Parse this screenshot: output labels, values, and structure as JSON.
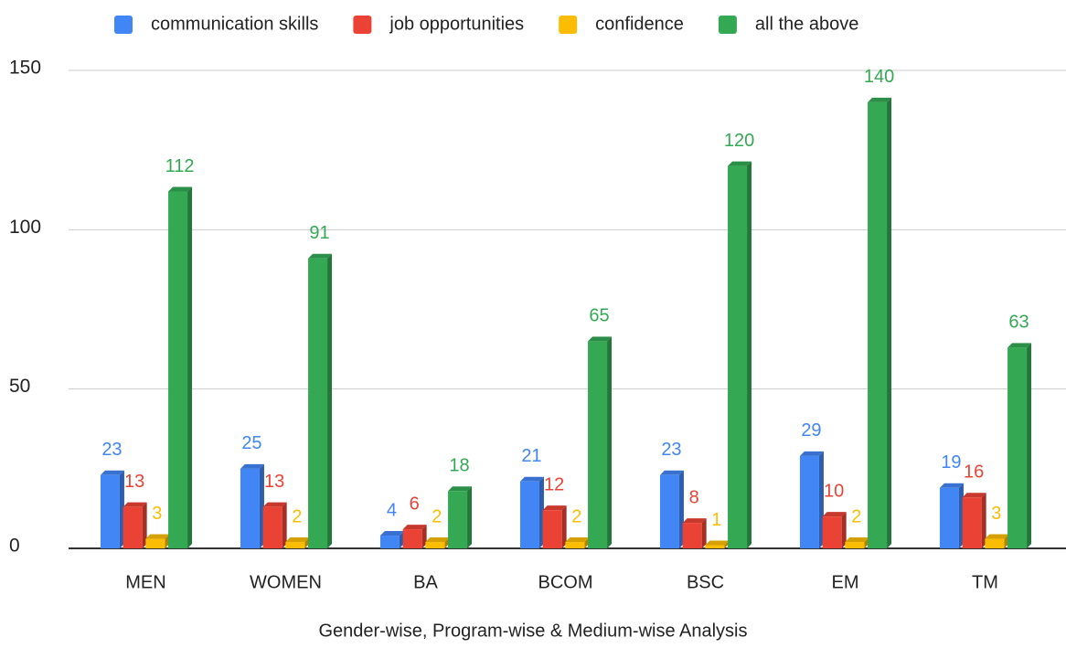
{
  "chart_data": {
    "type": "bar3d",
    "xlabel": "Gender-wise, Program-wise & Medium-wise Analysis",
    "categories": [
      "MEN",
      "WOMEN",
      "BA",
      "BCOM",
      "BSC",
      "EM",
      "TM"
    ],
    "series": [
      {
        "name": "communication skills",
        "color": "#4285f4",
        "values": [
          23,
          25,
          4,
          21,
          23,
          29,
          19
        ]
      },
      {
        "name": "job opportunities",
        "color": "#ea4335",
        "values": [
          13,
          13,
          6,
          12,
          8,
          10,
          16
        ]
      },
      {
        "name": "confidence",
        "color": "#fbbc04",
        "values": [
          3,
          2,
          2,
          2,
          1,
          2,
          3
        ]
      },
      {
        "name": "all the above",
        "color": "#34a853",
        "values": [
          112,
          91,
          18,
          65,
          120,
          140,
          63
        ]
      }
    ],
    "ylim": [
      0,
      150
    ],
    "yticks": [
      0,
      50,
      100,
      150
    ],
    "grid": true,
    "legend": "top"
  }
}
